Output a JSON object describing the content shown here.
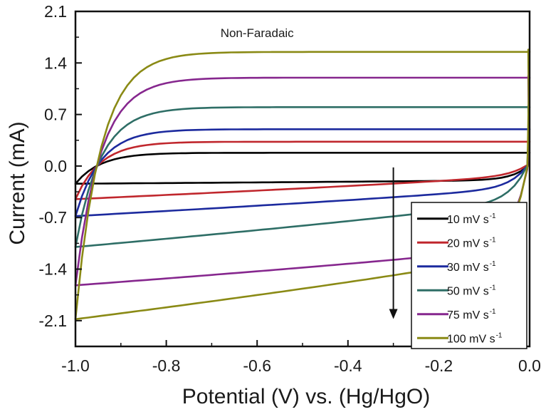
{
  "chart_data": {
    "type": "line",
    "title": "",
    "annotation": "Non-Faradaic",
    "xlabel": "Potential (V) vs. (Hg/HgO)",
    "ylabel": "Current (mA)",
    "xlim": [
      -1.0,
      0.0
    ],
    "ylim": [
      -2.45,
      2.1
    ],
    "x_ticks": [
      "-1.0",
      "-0.8",
      "-0.6",
      "-0.4",
      "-0.2",
      "0.0"
    ],
    "y_ticks": [
      "2.1",
      "1.4",
      "0.7",
      "0.0",
      "-0.7",
      "-1.4",
      "-2.1"
    ],
    "grid": false,
    "legend_position": "bottom-right",
    "arrow_direction": "down",
    "series": [
      {
        "name": "10 mV s",
        "unit_sup": "-1",
        "color": "#000000",
        "upper_plateau": 0.18,
        "lower_start": -0.19,
        "lower_end": -0.24
      },
      {
        "name": "20 mV s",
        "unit_sup": "-1",
        "color": "#c0272d",
        "upper_plateau": 0.33,
        "lower_start": -0.12,
        "lower_end": -0.45
      },
      {
        "name": "30 mV s",
        "unit_sup": "-1",
        "color": "#1c2a9e",
        "upper_plateau": 0.5,
        "lower_start": -0.28,
        "lower_end": -0.68
      },
      {
        "name": "50 mV s",
        "unit_sup": "-1",
        "color": "#2e6e66",
        "upper_plateau": 0.8,
        "lower_start": -0.45,
        "lower_end": -1.1
      },
      {
        "name": "75 mV s",
        "unit_sup": "-1",
        "color": "#86278e",
        "upper_plateau": 1.2,
        "lower_start": -1.08,
        "lower_end": -1.62
      },
      {
        "name": "100 mV s",
        "unit_sup": "-1",
        "color": "#8a8a15",
        "upper_plateau": 1.55,
        "lower_start": -1.15,
        "lower_end": -2.08
      }
    ]
  }
}
